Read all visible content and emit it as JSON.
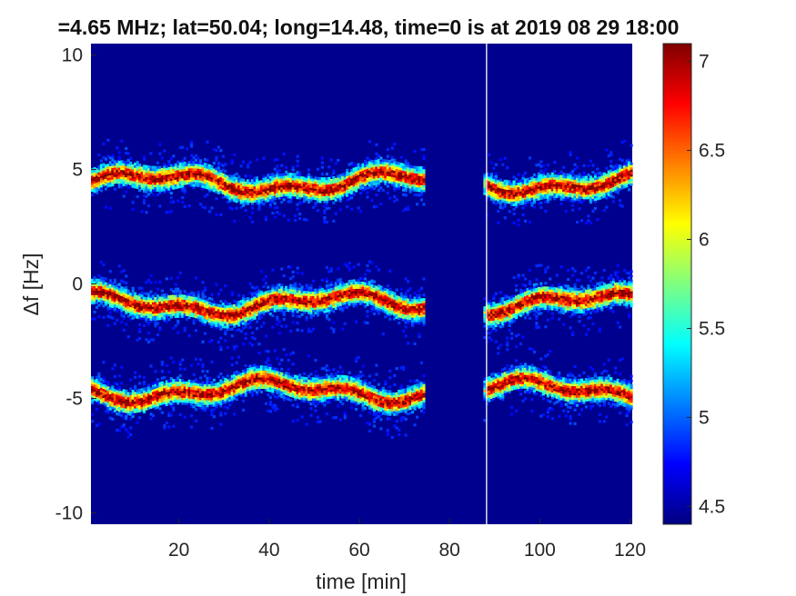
{
  "chart_data": {
    "type": "heatmap",
    "title": "=4.65 MHz;  lat=50.04; long=14.48, time=0 is at 2019 08 29 18:00",
    "xlabel": "time [min]",
    "ylabel": "Δf [Hz]",
    "xlim": [
      0.5,
      120.5
    ],
    "ylim": [
      -10.5,
      10.5
    ],
    "x_ticks": [
      "20",
      "40",
      "60",
      "80",
      "100",
      "120"
    ],
    "x_tick_values": [
      20,
      40,
      60,
      80,
      100,
      120
    ],
    "y_ticks": [
      "10",
      "5",
      "0",
      "-5",
      "-10"
    ],
    "y_tick_values": [
      10,
      5,
      0,
      -5,
      -10
    ],
    "colorbar": {
      "colormap": "jet",
      "range": [
        4.4,
        7.1
      ],
      "ticks": [
        "7",
        "6.5",
        "6",
        "5.5",
        "5",
        "4.5"
      ],
      "tick_values": [
        7,
        6.5,
        6,
        5.5,
        5,
        4.5
      ]
    },
    "background_level": 4.5,
    "signal_bands": [
      {
        "center_hz": 4.4,
        "peak_level": 7.0
      },
      {
        "center_hz": -0.9,
        "peak_level": 7.0
      },
      {
        "center_hz": -4.7,
        "peak_level": 7.0
      }
    ],
    "data_gap_minutes": [
      74,
      88
    ],
    "separator_line_minute": 88.2
  }
}
